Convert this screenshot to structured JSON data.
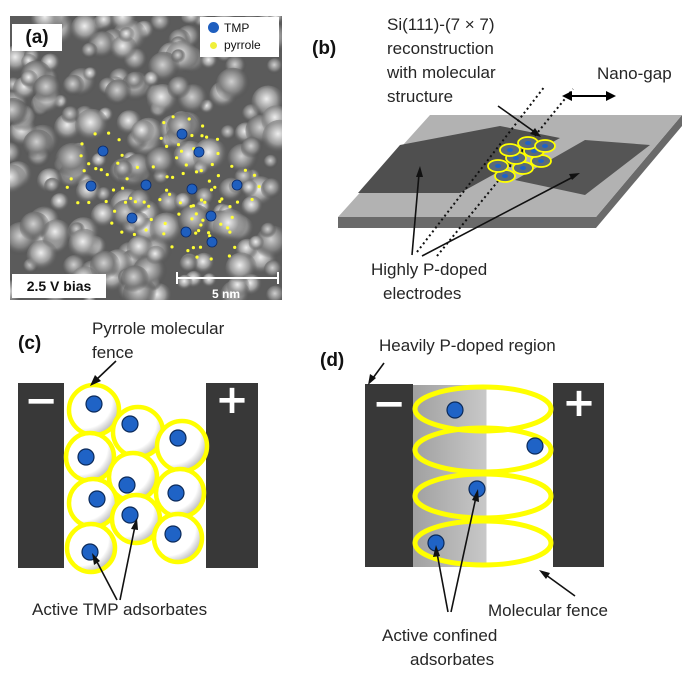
{
  "panel_labels": {
    "a": "(a)",
    "b": "(b)",
    "c": "(c)",
    "d": "(d)"
  },
  "panel_a": {
    "legend": {
      "tmp": "TMP",
      "pyrrole": "pyrrole"
    },
    "bias_label": "2.5 V bias",
    "scale_label": "5 nm",
    "colors": {
      "tmp": "#1f5fbf",
      "pyrrole": "#ffff33"
    }
  },
  "panel_b": {
    "recon_label_1": "Si(111)-(7 × 7)",
    "recon_label_2": "reconstruction",
    "recon_label_3": "with molecular",
    "recon_label_4": "structure",
    "nanogap_label": "Nano-gap",
    "electrodes_label_1": "Highly P-doped",
    "electrodes_label_2": "electrodes"
  },
  "panel_c": {
    "fence_label_1": "Pyrrole molecular",
    "fence_label_2": "fence",
    "adsorbates_label": "Active TMP adsorbates",
    "minus_sign": "−",
    "plus_sign": "+"
  },
  "panel_d": {
    "region_label": "Heavily P-doped region",
    "fence_label": "Molecular fence",
    "adsorbates_label_1": "Active confined",
    "adsorbates_label_2": "adsorbates",
    "minus_sign": "−",
    "plus_sign": "+"
  },
  "colors": {
    "electrode": "#383838",
    "ring": "#ffff00",
    "dot": "#1f63c6",
    "plate_light": "#a8a8a8",
    "plate_dark": "#4e4e4e"
  }
}
